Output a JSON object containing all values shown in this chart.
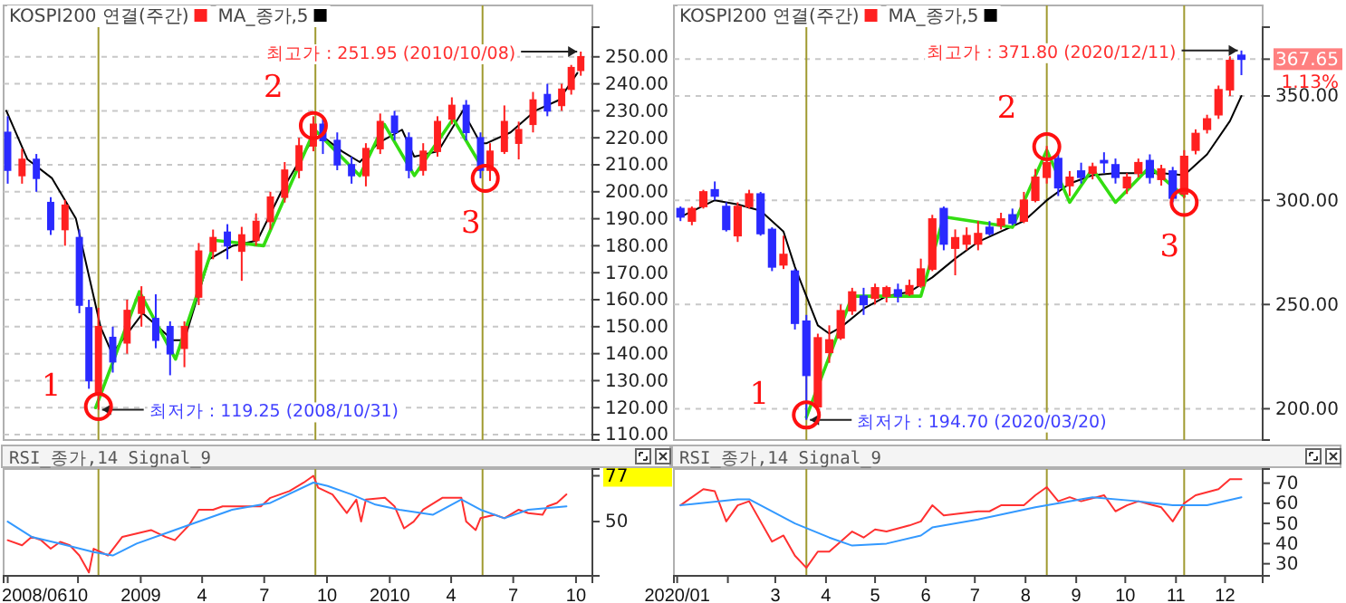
{
  "chart_data": [
    {
      "type": "candlestick",
      "legend": "top left",
      "grid": "y",
      "tick_labels": "y",
      "xlim": [
        "2008-06-14",
        "2010-10-25"
      ],
      "ylim": [
        108,
        261
      ],
      "yticks": [
        {
          "value": 110,
          "label": "110.00"
        },
        {
          "value": 120,
          "label": "120.00"
        },
        {
          "value": 130,
          "label": "130.00"
        },
        {
          "value": 140,
          "label": "140.00"
        },
        {
          "value": 150,
          "label": "150.00"
        },
        {
          "value": 160,
          "label": "160.00"
        },
        {
          "value": 170,
          "label": "170.00"
        },
        {
          "value": 180,
          "label": "180.00"
        },
        {
          "value": 190,
          "label": "190.00"
        },
        {
          "value": 200,
          "label": "200.00"
        },
        {
          "value": 210,
          "label": "210.00"
        },
        {
          "value": 220,
          "label": "220.00"
        },
        {
          "value": 230,
          "label": "230.00"
        },
        {
          "value": 240,
          "label": "240.00"
        },
        {
          "value": 250,
          "label": "250.00"
        }
      ],
      "series": [
        {
          "name": "KOSPI200 연결(주간)",
          "type": "candlestick",
          "color": "#ff2020",
          "colors": [
            "#2a2aff",
            "#ff2020",
            "#2a2aff",
            "#2a2aff",
            "#ff2020",
            "#2a2aff",
            "#2a2aff",
            "#ff2020",
            "#2a2aff",
            "#ff2020",
            "#ff2020",
            "#2a2aff",
            "#2a2aff",
            "#ff2020",
            "#ff2020",
            "#ff2020",
            "#2a2aff",
            "#ff2020",
            "#ff2020",
            "#ff2020",
            "#ff2020",
            "#ff2020",
            "#ff2020",
            "#2a2aff",
            "#2a2aff",
            "#2a2aff",
            "#ff2020",
            "#ff2020",
            "#2a2aff",
            "#2a2aff",
            "#ff2020",
            "#ff2020",
            "#ff2020",
            "#2a2aff",
            "#2a2aff",
            "#ff2020",
            "#ff2020",
            "#ff2020",
            "#ff2020",
            "#2a2aff",
            "#ff2020",
            "#ff2020",
            "#ff2020"
          ],
          "x": [
            "2008-06-20",
            "2008-07-11",
            "2008-08-01",
            "2008-08-22",
            "2008-09-12",
            "2008-10-03",
            "2008-10-17",
            "2008-10-31",
            "2008-11-21",
            "2008-12-12",
            "2009-01-02",
            "2009-01-23",
            "2009-02-13",
            "2009-03-06",
            "2009-03-27",
            "2009-04-17",
            "2009-05-08",
            "2009-05-29",
            "2009-06-19",
            "2009-07-10",
            "2009-07-31",
            "2009-08-21",
            "2009-09-11",
            "2009-09-25",
            "2009-10-16",
            "2009-11-06",
            "2009-11-27",
            "2009-12-18",
            "2010-01-08",
            "2010-01-29",
            "2010-02-19",
            "2010-03-12",
            "2010-04-02",
            "2010-04-23",
            "2010-05-14",
            "2010-05-28",
            "2010-06-18",
            "2010-07-09",
            "2010-07-30",
            "2010-08-20",
            "2010-09-10",
            "2010-09-24",
            "2010-10-08"
          ],
          "ohlc": [
            [
              222,
              228,
              203,
              208
            ],
            [
              206,
              216,
              203,
              212
            ],
            [
              212,
              214,
              200,
              205
            ],
            [
              196,
              198,
              184,
              186
            ],
            [
              186,
              197,
              180,
              195
            ],
            [
              183,
              186,
              155,
              158
            ],
            [
              157,
              160,
              127,
              130
            ],
            [
              125,
              157,
              119.25,
              150
            ],
            [
              146,
              150,
              133,
              137
            ],
            [
              144,
              160,
              140,
              156
            ],
            [
              155,
              165,
              150,
              161
            ],
            [
              153,
              162,
              142,
              145
            ],
            [
              150,
              152,
              132,
              140
            ],
            [
              142,
              152,
              135,
              150
            ],
            [
              161,
              181,
              158,
              178
            ],
            [
              178,
              186,
              175,
              183
            ],
            [
              185,
              188,
              175,
              180
            ],
            [
              178,
              187,
              167,
              184
            ],
            [
              182,
              192,
              180,
              189
            ],
            [
              189,
              200,
              186,
              198
            ],
            [
              198,
              211,
              196,
              208
            ],
            [
              208,
              220,
              205,
              217
            ],
            [
              217,
              228,
              215,
              225
            ],
            [
              225,
              227,
              214,
              219
            ],
            [
              219,
              222,
              208,
              210
            ],
            [
              210,
              213,
              203,
              206
            ],
            [
              206,
              218,
              202,
              216
            ],
            [
              216,
              229,
              214,
              226
            ],
            [
              228,
              230,
              219,
              222
            ],
            [
              220,
              222,
              205,
              208
            ],
            [
              208,
              218,
              206,
              215
            ],
            [
              215,
              228,
              213,
              226
            ],
            [
              227,
              235,
              225,
              232
            ],
            [
              232,
              234,
              219,
              222
            ],
            [
              220,
              222,
              205,
              208
            ],
            [
              208,
              218,
              204,
              215
            ],
            [
              215,
              232,
              214,
              226
            ],
            [
              218,
              226,
              212,
              223
            ],
            [
              225,
              237,
              222,
              234
            ],
            [
              236,
              240,
              228,
              230
            ],
            [
              232,
              240,
              230,
              238
            ],
            [
              238,
              247,
              236,
              246
            ],
            [
              245,
              251.95,
              243,
              250
            ]
          ]
        },
        {
          "name": "MA_종가,5",
          "type": "line",
          "color": "#000000",
          "x": [
            "2008-06-18",
            "2008-07-19",
            "2008-08-24",
            "2008-09-28",
            "2008-10-16",
            "2008-11-03",
            "2008-11-20",
            "2009-01-04",
            "2009-02-17",
            "2009-03-06",
            "2009-04-11",
            "2009-05-16",
            "2009-06-21",
            "2009-07-26",
            "2009-08-30",
            "2009-09-17",
            "2009-10-23",
            "2009-11-18",
            "2009-12-15",
            "2010-01-19",
            "2010-02-06",
            "2010-03-13",
            "2010-04-18",
            "2010-05-14",
            "2010-05-23",
            "2010-06-27",
            "2010-08-02",
            "2010-09-06",
            "2010-10-03"
          ],
          "values": [
            230,
            212,
            205,
            190,
            170,
            150,
            140,
            155,
            145,
            145,
            175,
            180,
            182,
            200,
            215,
            222,
            215,
            211,
            218,
            223,
            213,
            215,
            230,
            218,
            218,
            222,
            230,
            234,
            244
          ]
        },
        {
          "type": "line",
          "color": "#33dd11",
          "x": [
            "2008-10-27",
            "2008-12-30",
            "2009-02-21",
            "2009-04-20",
            "2009-06-30",
            "2009-09-13",
            "2009-11-18",
            "2009-12-24",
            "2010-02-06",
            "2010-04-04",
            "2010-05-14"
          ],
          "values": [
            120,
            163,
            138,
            182,
            180,
            223,
            206,
            225,
            206,
            227,
            210
          ]
        }
      ],
      "ref_lines": [
        {
          "axis": "x",
          "value": "2008-10-31",
          "color": "#a09a30"
        },
        {
          "axis": "x",
          "value": "2009-09-14",
          "color": "#a09a30"
        },
        {
          "axis": "x",
          "value": "2010-05-17",
          "color": "#a09a30"
        }
      ],
      "annotations": [
        {
          "text": "최고가 : 251.95 (2010/10/08)",
          "x": "2010-10-08",
          "y": 251.95
        },
        {
          "text": "최저가 : 119.25 (2008/10/31)",
          "x": "2008-10-31",
          "y": 119.25
        },
        {
          "text": "1",
          "x": "2008-10-31",
          "y": 120.4
        },
        {
          "text": "2",
          "x": "2009-09-11",
          "y": 224.5
        },
        {
          "text": "3",
          "x": "2010-05-21",
          "y": 205
        }
      ]
    },
    {
      "type": "candlestick",
      "legend": "top left",
      "grid": "y",
      "tick_labels": "y",
      "xlim": [
        "2019-12-30",
        "2020-12-24"
      ],
      "ylim": [
        185,
        383
      ],
      "yticks": [
        {
          "value": 200,
          "label": "200.00"
        },
        {
          "value": 250,
          "label": "250.00"
        },
        {
          "value": 300,
          "label": "300.00"
        },
        {
          "value": 350,
          "label": "350.00"
        },
        {
          "value": 367.65,
          "label": "367.65"
        }
      ],
      "series": [
        {
          "name": "KOSPI200 연결(주간)",
          "type": "candlestick",
          "color": "#ff2020",
          "colors": [
            "#2a2aff",
            "#ff2020",
            "#ff2020",
            "#2a2aff",
            "#2a2aff",
            "#ff2020",
            "#ff2020",
            "#2a2aff",
            "#2a2aff",
            "#ff2020",
            "#2a2aff",
            "#2a2aff",
            "#ff2020",
            "#ff2020",
            "#ff2020",
            "#ff2020",
            "#2a2aff",
            "#ff2020",
            "#ff2020",
            "#2a2aff",
            "#ff2020",
            "#ff2020",
            "#ff2020",
            "#2a2aff",
            "#ff2020",
            "#ff2020",
            "#ff2020",
            "#2a2aff",
            "#ff2020",
            "#2a2aff",
            "#ff2020",
            "#ff2020",
            "#ff2020",
            "#2a2aff",
            "#ff2020",
            "#2a2aff",
            "#ff2020",
            "#2a2aff",
            "#2a2aff",
            "#ff2020",
            "#ff2020",
            "#2a2aff",
            "#ff2020",
            "#2a2aff",
            "#ff2020",
            "#ff2020",
            "#ff2020",
            "#ff2020",
            "#ff2020",
            "#2a2aff"
          ],
          "x": [
            "2020-01-03",
            "2020-01-10",
            "2020-01-17",
            "2020-01-24",
            "2020-01-31",
            "2020-02-07",
            "2020-02-14",
            "2020-02-21",
            "2020-02-28",
            "2020-03-06",
            "2020-03-13",
            "2020-03-20",
            "2020-03-27",
            "2020-04-03",
            "2020-04-10",
            "2020-04-17",
            "2020-04-24",
            "2020-05-01",
            "2020-05-08",
            "2020-05-15",
            "2020-05-22",
            "2020-05-29",
            "2020-06-05",
            "2020-06-12",
            "2020-06-19",
            "2020-06-26",
            "2020-07-03",
            "2020-07-10",
            "2020-07-17",
            "2020-07-24",
            "2020-07-31",
            "2020-08-07",
            "2020-08-14",
            "2020-08-21",
            "2020-08-28",
            "2020-09-04",
            "2020-09-11",
            "2020-09-18",
            "2020-09-25",
            "2020-10-02",
            "2020-10-09",
            "2020-10-16",
            "2020-10-23",
            "2020-10-30",
            "2020-11-06",
            "2020-11-13",
            "2020-11-20",
            "2020-11-27",
            "2020-12-04",
            "2020-12-11"
          ],
          "ohlc": [
            [
              296,
              297,
              290,
              292
            ],
            [
              290,
              297,
              288,
              296
            ],
            [
              297,
              305,
              296,
              304
            ],
            [
              305,
              309,
              300,
              302
            ],
            [
              297,
              299,
              285,
              286
            ],
            [
              283,
              299,
              280,
              297
            ],
            [
              297,
              305,
              296,
              303
            ],
            [
              303,
              304,
              283,
              284
            ],
            [
              286,
              287,
              266,
              268
            ],
            [
              269,
              283,
              267,
              274
            ],
            [
              266,
              267,
              238,
              241
            ],
            [
              242,
              245,
              194.7,
              216
            ],
            [
              201,
              236,
              198,
              234
            ],
            [
              227,
              240,
              222,
              233
            ],
            [
              234,
              250,
              233,
              247
            ],
            [
              247,
              258,
              245,
              256
            ],
            [
              254,
              258,
              245,
              250
            ],
            [
              253,
              260,
              250,
              258
            ],
            [
              254,
              259,
              251,
              258
            ],
            [
              257,
              260,
              251,
              254
            ],
            [
              255,
              262,
              254,
              259
            ],
            [
              259,
              272,
              258,
              267
            ],
            [
              267,
              293,
              266,
              291
            ],
            [
              296,
              297,
              276,
              279
            ],
            [
              277,
              286,
              264,
              282
            ],
            [
              279,
              287,
              276,
              283
            ],
            [
              279,
              290,
              276,
              284
            ],
            [
              287,
              290,
              283,
              284
            ],
            [
              288,
              294,
              286,
              291
            ],
            [
              293,
              296,
              288,
              289
            ],
            [
              290,
              304,
              289,
              300
            ],
            [
              300,
              315,
              299,
              311
            ],
            [
              311,
              326,
              308,
              318
            ],
            [
              320,
              323,
              302,
              306
            ],
            [
              307,
              314,
              302,
              311
            ],
            [
              314,
              318,
              308,
              311
            ],
            [
              313,
              318,
              310,
              316
            ],
            [
              319,
              323,
              313,
              318
            ],
            [
              317,
              320,
              308,
              311
            ],
            [
              306,
              313,
              303,
              311
            ],
            [
              313,
              320,
              311,
              318
            ],
            [
              319,
              322,
              308,
              311
            ],
            [
              310,
              317,
              307,
              315
            ],
            [
              314,
              316,
              299,
              301
            ],
            [
              303,
              324,
              301,
              321
            ],
            [
              324,
              334,
              322,
              332
            ],
            [
              334,
              341,
              332,
              339
            ],
            [
              341,
              355,
              339,
              353
            ],
            [
              353,
              369,
              350,
              367
            ],
            [
              369.5,
              371.8,
              360,
              367.65
            ]
          ]
        },
        {
          "name": "MA_종가,5",
          "type": "line",
          "color": "#000000",
          "x": [
            "2020-01-03",
            "2020-01-24",
            "2020-02-07",
            "2020-02-21",
            "2020-03-06",
            "2020-03-13",
            "2020-03-27",
            "2020-04-03",
            "2020-04-10",
            "2020-04-24",
            "2020-05-08",
            "2020-05-22",
            "2020-06-05",
            "2020-06-19",
            "2020-07-03",
            "2020-07-17",
            "2020-07-31",
            "2020-08-14",
            "2020-08-28",
            "2020-09-11",
            "2020-09-25",
            "2020-10-09",
            "2020-10-23",
            "2020-11-06",
            "2020-11-20",
            "2020-12-04",
            "2020-12-11"
          ],
          "values": [
            292,
            300,
            298,
            295,
            285,
            268,
            240,
            236,
            239,
            248,
            254,
            256,
            263,
            272,
            280,
            285,
            290,
            300,
            308,
            312,
            313,
            313,
            313,
            312,
            322,
            338,
            350
          ]
        },
        {
          "type": "line",
          "color": "#33dd11",
          "x": [
            "2020-03-20",
            "2020-04-17",
            "2020-05-29",
            "2020-06-12",
            "2020-07-24",
            "2020-08-14",
            "2020-08-28",
            "2020-09-11",
            "2020-09-25",
            "2020-10-16",
            "2020-11-06"
          ],
          "values": [
            196,
            254,
            254,
            292,
            287,
            324,
            299,
            315,
            299,
            316,
            302
          ]
        }
      ],
      "ref_lines": [
        {
          "axis": "x",
          "value": "2020-03-20",
          "color": "#a09a30"
        },
        {
          "axis": "x",
          "value": "2020-08-14",
          "color": "#a09a30"
        },
        {
          "axis": "x",
          "value": "2020-11-06",
          "color": "#a09a30"
        }
      ],
      "annotations": [
        {
          "text": "최고가 : 371.80 (2020/12/11)",
          "x": "2020-12-11",
          "y": 371.8
        },
        {
          "text": "최저가 : 194.70 (2020/03/20)",
          "x": "2020-03-20",
          "y": 194.7
        },
        {
          "text": "1",
          "x": "2020-03-20",
          "y": 197
        },
        {
          "text": "2",
          "x": "2020-08-14",
          "y": 325.7
        },
        {
          "text": "3",
          "x": "2020-11-06",
          "y": 299
        },
        "1.13%"
      ]
    },
    {
      "type": "line",
      "title": "RSI_종가,14 Signal_9",
      "xlim": [
        "2008-06-14",
        "2010-10-25"
      ],
      "ylim": [
        18,
        81
      ],
      "yticks": [
        50,
        77
      ],
      "xticks": [
        {
          "value": "2008-06-20",
          "label": "2008/06"
        },
        {
          "value": "2008-10-01",
          "label": "10"
        },
        {
          "value": "2009-01-01",
          "label": "2009"
        },
        {
          "value": "2009-04-01",
          "label": "4"
        },
        {
          "value": "2009-07-01",
          "label": "7"
        },
        {
          "value": "2009-10-01",
          "label": "10"
        },
        {
          "value": "2010-01-01",
          "label": "2010"
        },
        {
          "value": "2010-04-01",
          "label": "4"
        },
        {
          "value": "2010-07-01",
          "label": "7"
        },
        {
          "value": "2010-10-01",
          "label": "10"
        }
      ],
      "series": [
        {
          "color": "#ff3030",
          "x": [
            "2008-06-20",
            "2008-07-11",
            "2008-07-25",
            "2008-08-08",
            "2008-08-22",
            "2008-09-05",
            "2008-09-19",
            "2008-10-03",
            "2008-10-17",
            "2008-10-24",
            "2008-11-14",
            "2008-12-05",
            "2008-12-26",
            "2009-01-16",
            "2009-02-06",
            "2009-02-20",
            "2009-03-13",
            "2009-03-27",
            "2009-04-17",
            "2009-05-01",
            "2009-05-29",
            "2009-06-26",
            "2009-07-10",
            "2009-08-07",
            "2009-08-28",
            "2009-09-11",
            "2009-09-18",
            "2009-10-09",
            "2009-10-30",
            "2009-11-13",
            "2009-11-20",
            "2009-11-27",
            "2009-12-25",
            "2010-01-08",
            "2010-01-22",
            "2010-02-05",
            "2010-02-19",
            "2010-03-19",
            "2010-04-16",
            "2010-04-23",
            "2010-05-07",
            "2010-05-14",
            "2010-06-04",
            "2010-06-18",
            "2010-07-09",
            "2010-07-23",
            "2010-08-13",
            "2010-08-20",
            "2010-09-03",
            "2010-09-17"
          ],
          "values": [
            39,
            36,
            41,
            39,
            34,
            38,
            36,
            30,
            20,
            34,
            30,
            41,
            43,
            45,
            41,
            39,
            48,
            57,
            57,
            59,
            59,
            59,
            64,
            68,
            73,
            77,
            70,
            66,
            55,
            63,
            50,
            63,
            64,
            59,
            46,
            50,
            57,
            64,
            64,
            50,
            45,
            52,
            54,
            52,
            57,
            55,
            54,
            59,
            61,
            66
          ]
        },
        {
          "color": "#3399ff",
          "x": [
            "2008-06-20",
            "2008-07-25",
            "2008-09-05",
            "2008-10-24",
            "2008-11-21",
            "2008-12-26",
            "2009-02-13",
            "2009-03-27",
            "2009-05-15",
            "2009-07-10",
            "2009-09-11",
            "2009-10-02",
            "2009-11-06",
            "2009-12-11",
            "2010-01-15",
            "2010-03-05",
            "2010-04-16",
            "2010-05-14",
            "2010-06-18",
            "2010-07-23",
            "2010-09-17"
          ],
          "values": [
            50,
            41,
            37,
            32,
            30,
            37,
            44,
            50,
            57,
            61,
            73,
            71,
            66,
            60,
            57,
            54,
            63,
            57,
            52,
            57,
            59
          ]
        }
      ],
      "ref_lines": [
        {
          "axis": "x",
          "value": "2008-10-31",
          "color": "#a09a30"
        },
        {
          "axis": "x",
          "value": "2009-09-14",
          "color": "#a09a30"
        },
        {
          "axis": "x",
          "value": "2010-05-17",
          "color": "#a09a30"
        }
      ]
    },
    {
      "type": "line",
      "title": "RSI_종가,14 Signal_9",
      "xlim": [
        "2019-12-30",
        "2020-12-24"
      ],
      "ylim": [
        24,
        77
      ],
      "yticks": [
        30,
        40,
        50,
        60,
        70
      ],
      "xticks": [
        {
          "value": "2020-01-01",
          "label": "2020/01"
        },
        {
          "value": "2020-02-01",
          "label": null
        },
        {
          "value": "2020-03-01",
          "label": "3"
        },
        {
          "value": "2020-04-01",
          "label": "4"
        },
        {
          "value": "2020-05-01",
          "label": "5"
        },
        {
          "value": "2020-06-01",
          "label": "6"
        },
        {
          "value": "2020-07-01",
          "label": "7"
        },
        {
          "value": "2020-08-01",
          "label": "8"
        },
        {
          "value": "2020-09-01",
          "label": "9"
        },
        {
          "value": "2020-10-01",
          "label": "10"
        },
        {
          "value": "2020-11-01",
          "label": "11"
        },
        {
          "value": "2020-12-01",
          "label": "12"
        }
      ],
      "series": [
        {
          "color": "#ff3030",
          "x": [
            "2020-01-03",
            "2020-01-17",
            "2020-01-24",
            "2020-01-31",
            "2020-02-07",
            "2020-02-14",
            "2020-02-28",
            "2020-03-06",
            "2020-03-13",
            "2020-03-20",
            "2020-03-27",
            "2020-04-03",
            "2020-04-17",
            "2020-04-24",
            "2020-05-01",
            "2020-05-08",
            "2020-05-22",
            "2020-05-29",
            "2020-06-05",
            "2020-06-12",
            "2020-07-03",
            "2020-07-10",
            "2020-07-17",
            "2020-07-31",
            "2020-08-07",
            "2020-08-14",
            "2020-08-21",
            "2020-08-28",
            "2020-09-04",
            "2020-09-18",
            "2020-09-25",
            "2020-10-02",
            "2020-10-09",
            "2020-10-23",
            "2020-10-30",
            "2020-11-06",
            "2020-11-13",
            "2020-11-27",
            "2020-12-04",
            "2020-12-11"
          ],
          "values": [
            59,
            67,
            66,
            51,
            59,
            61,
            41,
            44,
            34,
            28,
            36,
            36,
            46,
            43,
            47,
            46,
            49,
            51,
            59,
            54,
            56,
            56,
            59,
            59,
            64,
            68,
            61,
            63,
            61,
            64,
            56,
            59,
            61,
            58,
            51,
            60,
            64,
            67,
            72,
            72
          ]
        },
        {
          "color": "#3399ff",
          "x": [
            "2020-01-03",
            "2020-02-07",
            "2020-02-14",
            "2020-03-13",
            "2020-04-03",
            "2020-04-17",
            "2020-05-08",
            "2020-05-29",
            "2020-06-05",
            "2020-07-03",
            "2020-08-07",
            "2020-09-11",
            "2020-10-09",
            "2020-10-30",
            "2020-11-20",
            "2020-12-11"
          ],
          "values": [
            59,
            62,
            62,
            50,
            43,
            39,
            40,
            44,
            48,
            52,
            58,
            63,
            61,
            59,
            59,
            63
          ]
        }
      ],
      "ref_lines": [
        {
          "axis": "x",
          "value": "2020-03-20",
          "color": "#a09a30"
        },
        {
          "axis": "x",
          "value": "2020-08-14",
          "color": "#a09a30"
        },
        {
          "axis": "x",
          "value": "2020-11-06",
          "color": "#a09a30"
        }
      ]
    }
  ]
}
